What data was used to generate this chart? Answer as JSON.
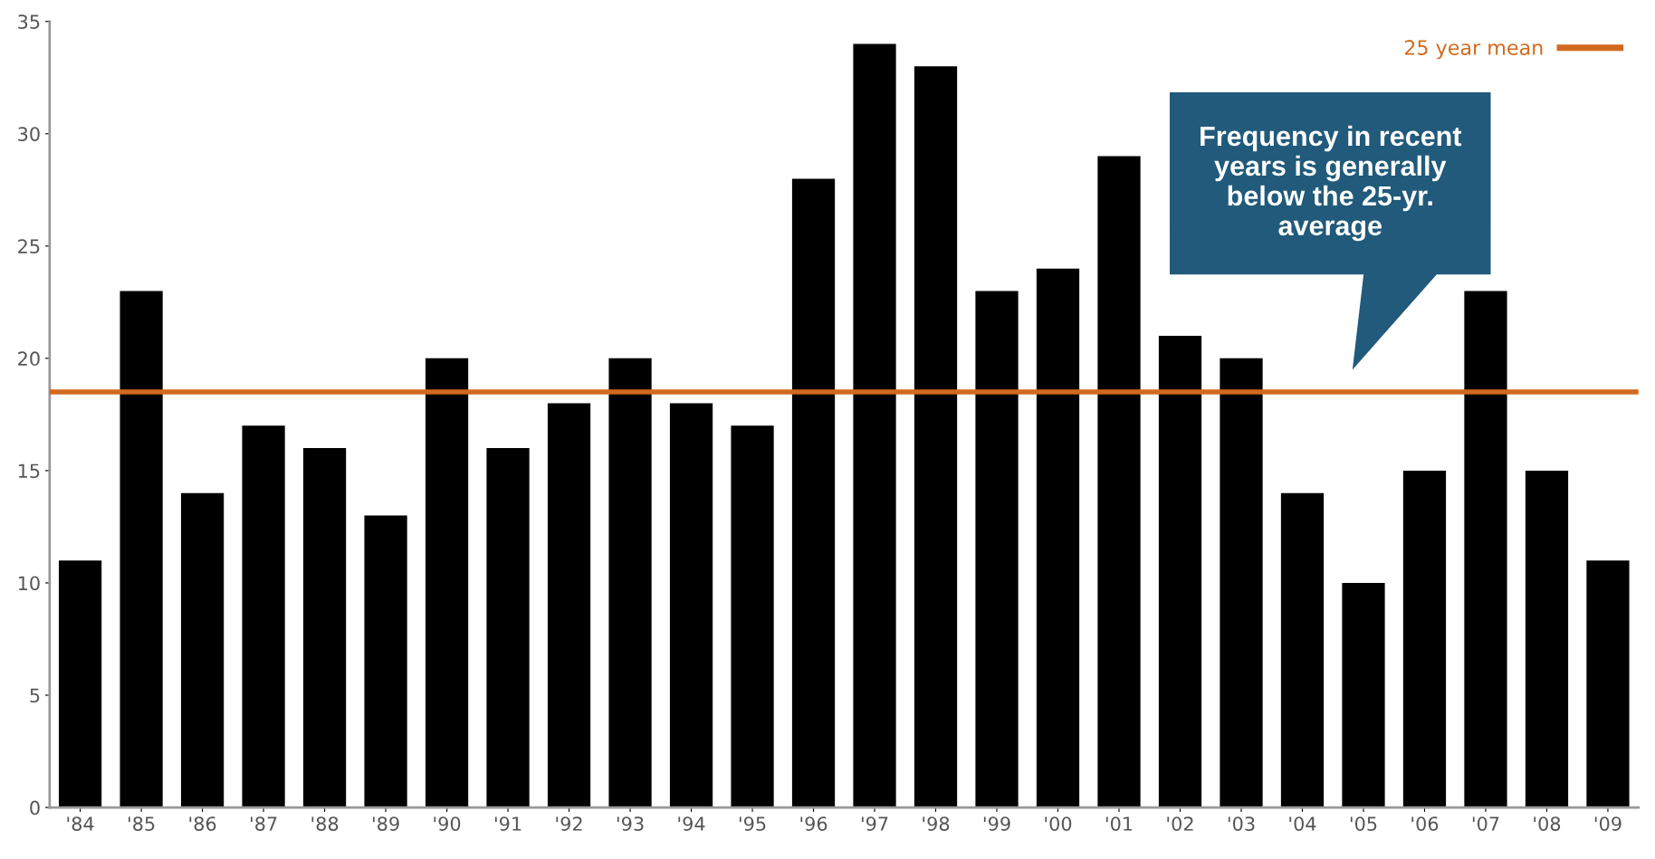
{
  "chart_data": {
    "type": "bar",
    "categories": [
      "'84",
      "'85",
      "'86",
      "'87",
      "'88",
      "'89",
      "'90",
      "'91",
      "'92",
      "'93",
      "'94",
      "'95",
      "'96",
      "'97",
      "'98",
      "'99",
      "'00",
      "'01",
      "'02",
      "'03",
      "'04",
      "'05",
      "'06",
      "'07",
      "'08",
      "'09"
    ],
    "values": [
      11,
      23,
      14,
      17,
      16,
      13,
      20,
      16,
      18,
      20,
      18,
      17,
      28,
      34,
      33,
      23,
      24,
      29,
      21,
      20,
      14,
      10,
      15,
      23,
      15,
      11
    ],
    "color": "#000000",
    "ylim": [
      0,
      35
    ],
    "yticks": [
      0,
      5,
      10,
      15,
      20,
      25,
      30,
      35
    ],
    "ref_lines": [
      {
        "axis": "y",
        "value": 18.5,
        "label": "25 year mean",
        "color": "#d2691e"
      }
    ],
    "annotations": [
      "Frequency in recent years is generally below the 25-yr. average"
    ],
    "legend": "top right",
    "grid": false
  }
}
